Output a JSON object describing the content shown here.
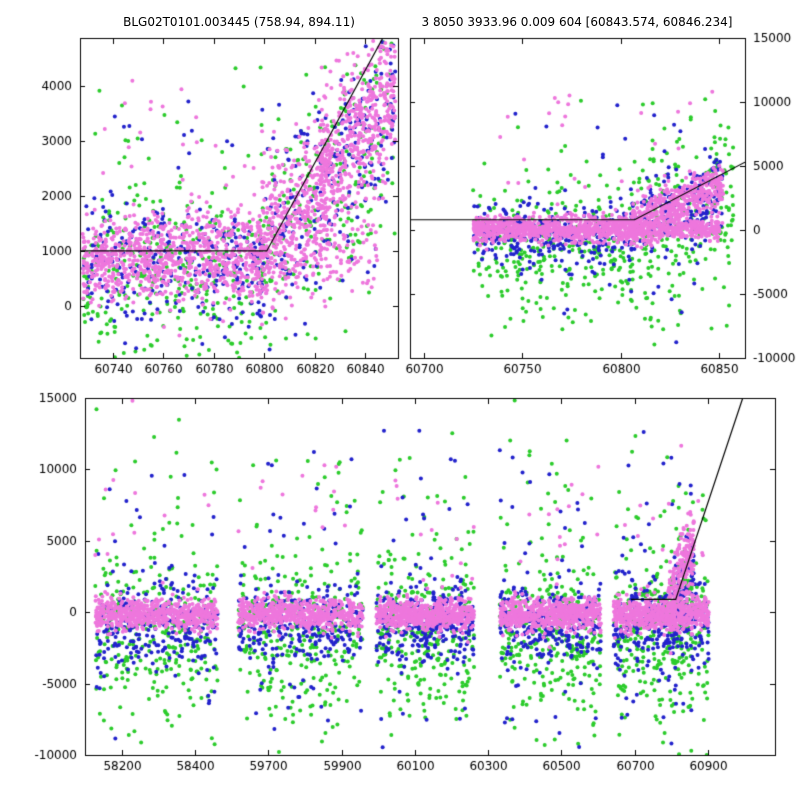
{
  "titles": {
    "left": "BLG02T0101.003445 (758.94, 894.11)",
    "right": "3 8050 3933.96 0.009 604 [60843.574, 60846.234]"
  },
  "colors": {
    "violet": "#ee77dd",
    "green": "#2ccc2c",
    "blue": "#2222cc",
    "line": "#000000",
    "frame": "#000000",
    "text": "#000000",
    "background": "#ffffff"
  },
  "chart_data": {
    "type": "scatter",
    "description": "Microlensing event light curve: flux vs MJD in three panels (zoomed recent season left, recent season with wide flux scale right, full multi-season baseline bottom). Black polyline is the fitted model: flat baseline then linear rise starting near MJD 60805.",
    "panels": [
      {
        "id": "top-left",
        "x_range": [
          60727,
          60853
        ],
        "y_range": [
          -950,
          4880
        ],
        "x_ticks": [
          60740,
          60760,
          60780,
          60800,
          60820,
          60840
        ],
        "y_ticks": [
          0,
          1000,
          2000,
          3000,
          4000
        ],
        "y_label_side": "left",
        "model_line": [
          [
            60727,
            1000
          ],
          [
            60801,
            1000
          ],
          [
            60847,
            4880
          ]
        ],
        "series": [
          {
            "color": "green",
            "clusters": [
              [
                60728,
                60800,
                320,
                650,
                650,
                850
              ],
              [
                60798,
                60852,
                230,
                900,
                3300,
                1100
              ],
              [
                60730,
                60800,
                18,
                3000,
                3000,
                700
              ]
            ]
          },
          {
            "color": "blue",
            "clusters": [
              [
                60728,
                60800,
                280,
                800,
                800,
                550
              ],
              [
                60798,
                60852,
                240,
                900,
                3500,
                900
              ],
              [
                60735,
                60800,
                12,
                3000,
                3000,
                600
              ]
            ]
          },
          {
            "color": "violet",
            "clusters": [
              [
                60728,
                60800,
                850,
                880,
                880,
                400
              ],
              [
                60798,
                60825,
                350,
                1100,
                2200,
                650
              ],
              [
                60800,
                60845,
                150,
                1000,
                1000,
                450
              ],
              [
                60822,
                60852,
                500,
                2300,
                3900,
                750
              ],
              [
                60730,
                60800,
                25,
                2600,
                2600,
                700
              ]
            ]
          }
        ]
      },
      {
        "id": "top-right",
        "x_range": [
          60693,
          60863
        ],
        "y_range": [
          -10000,
          15000
        ],
        "x_ticks": [
          60700,
          60750,
          60800,
          60850
        ],
        "y_ticks": [
          -10000,
          -5000,
          0,
          5000,
          10000,
          15000
        ],
        "y_label_side": "right",
        "model_line": [
          [
            60693,
            800
          ],
          [
            60807,
            800
          ],
          [
            60863,
            5300
          ]
        ],
        "series": [
          {
            "color": "green",
            "clusters": [
              [
                60725,
                60807,
                300,
                -1200,
                -1200,
                2400
              ],
              [
                60805,
                60857,
                220,
                -500,
                2000,
                3000
              ],
              [
                60735,
                60855,
                25,
                -6500,
                -6500,
                2000
              ],
              [
                60740,
                60850,
                15,
                8000,
                8000,
                2500
              ]
            ]
          },
          {
            "color": "blue",
            "clusters": [
              [
                60725,
                60807,
                280,
                -400,
                -400,
                1300
              ],
              [
                60805,
                60852,
                200,
                200,
                2800,
                1600
              ],
              [
                60740,
                60850,
                12,
                7000,
                7000,
                3000
              ],
              [
                60745,
                60845,
                12,
                -5500,
                -5500,
                1800
              ]
            ]
          },
          {
            "color": "violet",
            "clusters": [
              [
                60725,
                60807,
                850,
                100,
                100,
                500
              ],
              [
                60805,
                60850,
                300,
                150,
                150,
                450
              ],
              [
                60805,
                60852,
                450,
                400,
                3600,
                900
              ],
              [
                60730,
                60850,
                25,
                6500,
                6500,
                3000
              ]
            ]
          }
        ]
      },
      {
        "id": "bottom",
        "segments": [
          {
            "x_range": [
              58100,
              58500
            ],
            "x_ticks": [
              58200,
              58400
            ]
          },
          {
            "x_range": [
              59600,
              61083
            ],
            "x_ticks": [
              59700,
              59900,
              60100,
              60300,
              60500,
              60700,
              60900
            ]
          }
        ],
        "y_range": [
          -10000,
          15000
        ],
        "y_ticks": [
          -10000,
          -5000,
          0,
          5000,
          10000,
          15000
        ],
        "y_label_side": "left",
        "model_line": [
          [
            60690,
            900
          ],
          [
            60812,
            900
          ],
          [
            60995,
            15000
          ]
        ],
        "series": [
          {
            "color": "green",
            "clusters": [
              [
                58128,
                58462,
                270,
                -1500,
                -1500,
                2600
              ],
              [
                58128,
                58462,
                28,
                6500,
                6500,
                3500
              ],
              [
                58128,
                58462,
                22,
                -6500,
                -6500,
                2200
              ],
              [
                59618,
                59958,
                270,
                -1500,
                -1500,
                2600
              ],
              [
                59618,
                59958,
                28,
                6500,
                6500,
                3500
              ],
              [
                59618,
                59958,
                22,
                -6500,
                -6500,
                2200
              ],
              [
                59995,
                60262,
                270,
                -1500,
                -1500,
                2600
              ],
              [
                59995,
                60262,
                28,
                6500,
                6500,
                3500
              ],
              [
                59995,
                60262,
                22,
                -6500,
                -6500,
                2200
              ],
              [
                60332,
                60608,
                270,
                -1500,
                -1500,
                2600
              ],
              [
                60332,
                60608,
                28,
                6500,
                6500,
                3500
              ],
              [
                60332,
                60608,
                22,
                -6500,
                -6500,
                2200
              ],
              [
                60642,
                60902,
                270,
                -1500,
                -1500,
                2600
              ],
              [
                60642,
                60902,
                28,
                6500,
                6500,
                3500
              ],
              [
                60642,
                60902,
                22,
                -6500,
                -6500,
                2200
              ],
              [
                60800,
                60862,
                60,
                500,
                3500,
                2000
              ]
            ]
          },
          {
            "color": "blue",
            "clusters": [
              [
                58128,
                58462,
                250,
                -900,
                -900,
                1500
              ],
              [
                58128,
                58462,
                20,
                6000,
                6000,
                3500
              ],
              [
                58128,
                58462,
                15,
                -5500,
                -5500,
                2000
              ],
              [
                59618,
                59958,
                250,
                -900,
                -900,
                1500
              ],
              [
                59618,
                59958,
                20,
                6000,
                6000,
                3500
              ],
              [
                59618,
                59958,
                15,
                -5500,
                -5500,
                2000
              ],
              [
                59995,
                60262,
                250,
                -900,
                -900,
                1500
              ],
              [
                59995,
                60262,
                20,
                6000,
                6000,
                3500
              ],
              [
                59995,
                60262,
                15,
                -5500,
                -5500,
                2000
              ],
              [
                60332,
                60608,
                250,
                -900,
                -900,
                1500
              ],
              [
                60332,
                60608,
                20,
                6000,
                6000,
                3500
              ],
              [
                60332,
                60608,
                15,
                -5500,
                -5500,
                2000
              ],
              [
                60642,
                60902,
                250,
                -900,
                -900,
                1500
              ],
              [
                60642,
                60902,
                20,
                6000,
                6000,
                3500
              ],
              [
                60642,
                60902,
                15,
                -5500,
                -5500,
                2000
              ],
              [
                60800,
                60862,
                60,
                500,
                4000,
                1500
              ]
            ]
          },
          {
            "color": "violet",
            "clusters": [
              [
                58128,
                58462,
                600,
                -150,
                -150,
                550
              ],
              [
                58128,
                58462,
                15,
                5000,
                5000,
                3500
              ],
              [
                59618,
                59958,
                600,
                -150,
                -150,
                550
              ],
              [
                59618,
                59958,
                15,
                5000,
                5000,
                3500
              ],
              [
                59995,
                60262,
                600,
                -150,
                -150,
                550
              ],
              [
                59995,
                60262,
                15,
                5000,
                5000,
                3500
              ],
              [
                60332,
                60608,
                600,
                -150,
                -150,
                550
              ],
              [
                60332,
                60608,
                15,
                5000,
                5000,
                3500
              ],
              [
                60642,
                60902,
                600,
                -150,
                -150,
                550
              ],
              [
                60642,
                60902,
                15,
                5000,
                5000,
                3500
              ],
              [
                60790,
                60862,
                200,
                300,
                4800,
                1300
              ]
            ]
          }
        ]
      }
    ]
  }
}
